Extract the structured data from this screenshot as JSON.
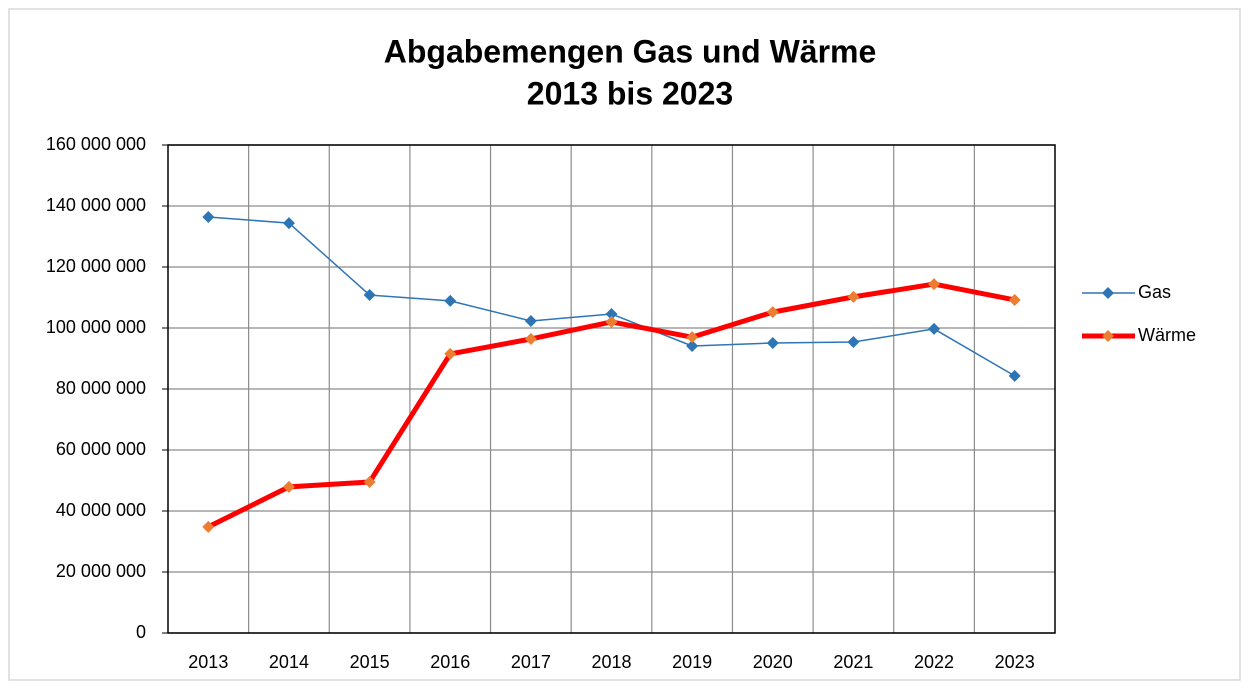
{
  "chart_data": {
    "type": "line",
    "title": [
      "Abgabemengen Gas und Wärme",
      "2013 bis 2023"
    ],
    "categories": [
      "2013",
      "2014",
      "2015",
      "2016",
      "2017",
      "2018",
      "2019",
      "2020",
      "2021",
      "2022",
      "2023"
    ],
    "series": [
      {
        "name": "Gas",
        "color": "#2e75b6",
        "marker_color": "#2e75b6",
        "line_width": 1.5,
        "values": [
          136400000,
          134400000,
          110800000,
          108900000,
          102300000,
          104600000,
          94100000,
          95100000,
          95400000,
          99700000,
          84300000
        ]
      },
      {
        "name": "Wärme",
        "color": "#ff0000",
        "marker_color": "#ed7d31",
        "line_width": 5,
        "values": [
          34800000,
          47900000,
          49500000,
          91500000,
          96400000,
          102000000,
          97000000,
          105200000,
          110200000,
          114400000,
          109200000
        ]
      }
    ],
    "ylim": [
      0,
      160000000
    ],
    "yticks": [
      0,
      {
        "value": 20000000,
        "label": "20 000 000"
      },
      {
        "value": 40000000,
        "label": "40 000 000"
      },
      {
        "value": 60000000,
        "label": "60 000 000"
      },
      {
        "value": 80000000,
        "label": "80 000 000"
      },
      {
        "value": 100000000,
        "label": "100 000 000"
      },
      {
        "value": 120000000,
        "label": "120 000 000"
      },
      {
        "value": 140000000,
        "label": "140 000 000"
      },
      {
        "value": 160000000,
        "label": "160 000 000"
      }
    ],
    "grid": true,
    "legend": "right"
  }
}
